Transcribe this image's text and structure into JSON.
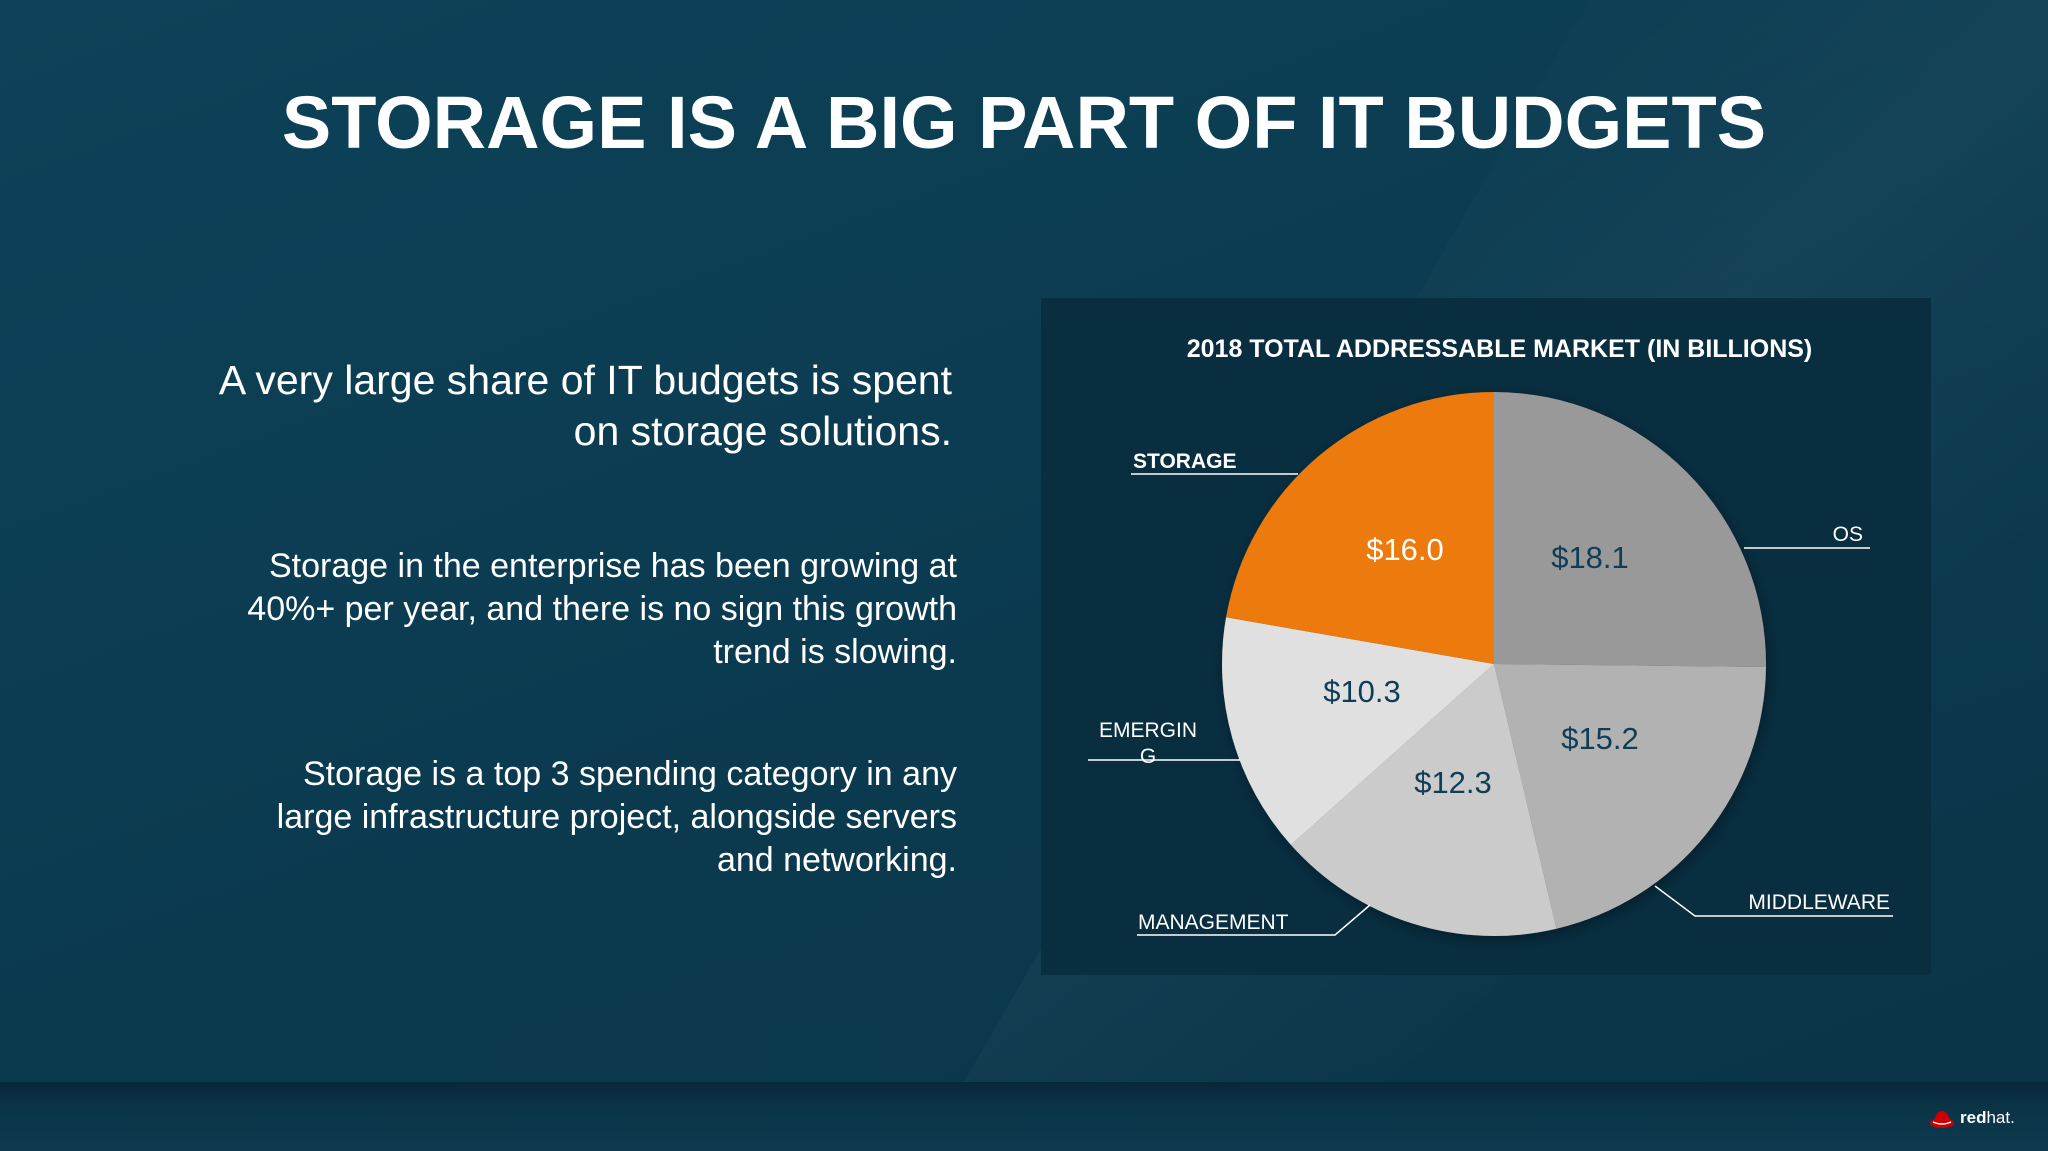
{
  "slide": {
    "title": "STORAGE IS A BIG PART OF IT BUDGETS",
    "lead_line1": "A very large share of IT budgets is spent",
    "lead_line2": "on storage solutions.",
    "para1_line1": "Storage in the enterprise has been growing at",
    "para1_line2": "40%+ per year, and there is no sign this growth",
    "para1_line3": "trend is slowing.",
    "para2_line1": "Storage is a top 3 spending category in any",
    "para2_line2": "large infrastructure project,  alongside servers",
    "para2_line3": "and networking.",
    "logo_bold": "red",
    "logo_light": "hat."
  },
  "chart_data": {
    "type": "pie",
    "title": "2018 TOTAL ADDRESSABLE MARKET (IN BILLIONS)",
    "slices": [
      {
        "name": "OS",
        "value": 18.1,
        "label": "$18.1",
        "color": "#9a9999",
        "label_color": "#0f3d55"
      },
      {
        "name": "MIDDLEWARE",
        "value": 15.2,
        "label": "$15.2",
        "color": "#b3b2b3",
        "label_color": "#0f3d55"
      },
      {
        "name": "MANAGEMENT",
        "value": 12.3,
        "label": "$12.3",
        "color": "#cccbcc",
        "label_color": "#0f3d55"
      },
      {
        "name": "EMERGIN\nG",
        "value": 10.3,
        "label": "$10.3",
        "color": "#e1e0e1",
        "label_color": "#0f3d55"
      },
      {
        "name": "STORAGE",
        "value": 16.0,
        "label": "$16.0",
        "color": "#ec7a0c",
        "label_color": "#ffffff"
      }
    ],
    "category_labels": [
      "OS",
      "MIDDLEWARE",
      "MANAGEMENT",
      "EMERGIN",
      "G",
      "STORAGE"
    ]
  }
}
